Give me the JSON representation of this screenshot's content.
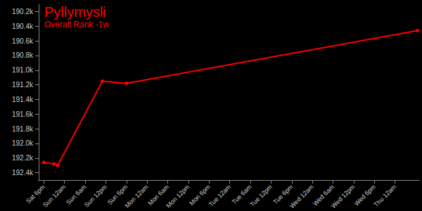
{
  "chart_data": {
    "type": "line",
    "title": "Pyllymysli",
    "subtitle": "Overall Rank -1w",
    "x": [
      0,
      3,
      4,
      17,
      24,
      108.5
    ],
    "values": [
      192260,
      192280,
      192300,
      191150,
      191180,
      190460
    ],
    "color": "#ff0000",
    "marker": "circle",
    "grid": false,
    "xlim": [
      -1.5,
      109
    ],
    "xticks": [
      {
        "value": 0,
        "label": "Sat 6pm"
      },
      {
        "value": 6,
        "label": "Sun 12am"
      },
      {
        "value": 12,
        "label": "Sun 6am"
      },
      {
        "value": 18,
        "label": "Sun 12pm"
      },
      {
        "value": 24,
        "label": "Sun 6pm"
      },
      {
        "value": 30,
        "label": "Mon 12am"
      },
      {
        "value": 36,
        "label": "Mon 6am"
      },
      {
        "value": 42,
        "label": "Mon 12pm"
      },
      {
        "value": 48,
        "label": "Mon 6pm"
      },
      {
        "value": 54,
        "label": "Tue 12am"
      },
      {
        "value": 60,
        "label": "Tue 6am"
      },
      {
        "value": 66,
        "label": "Tue 12pm"
      },
      {
        "value": 72,
        "label": "Tue 6pm"
      },
      {
        "value": 78,
        "label": "Wed 12am"
      },
      {
        "value": 84,
        "label": "Wed 6am"
      },
      {
        "value": 90,
        "label": "Wed 12pm"
      },
      {
        "value": 96,
        "label": "Wed 6pm"
      },
      {
        "value": 102,
        "label": "Thu 12am"
      }
    ],
    "ylim": [
      190100,
      192500
    ],
    "yticks": [
      {
        "value": 190200,
        "label": "190.2k"
      },
      {
        "value": 190400,
        "label": "190.4k"
      },
      {
        "value": 190600,
        "label": "190.6k"
      },
      {
        "value": 190800,
        "label": "190.8k"
      },
      {
        "value": 191000,
        "label": "191.0k"
      },
      {
        "value": 191200,
        "label": "191.2k"
      },
      {
        "value": 191400,
        "label": "191.4k"
      },
      {
        "value": 191600,
        "label": "191.6k"
      },
      {
        "value": 191800,
        "label": "191.8k"
      },
      {
        "value": 192000,
        "label": "192.0k"
      },
      {
        "value": 192200,
        "label": "192.2k"
      },
      {
        "value": 192400,
        "label": "192.4k"
      }
    ]
  }
}
